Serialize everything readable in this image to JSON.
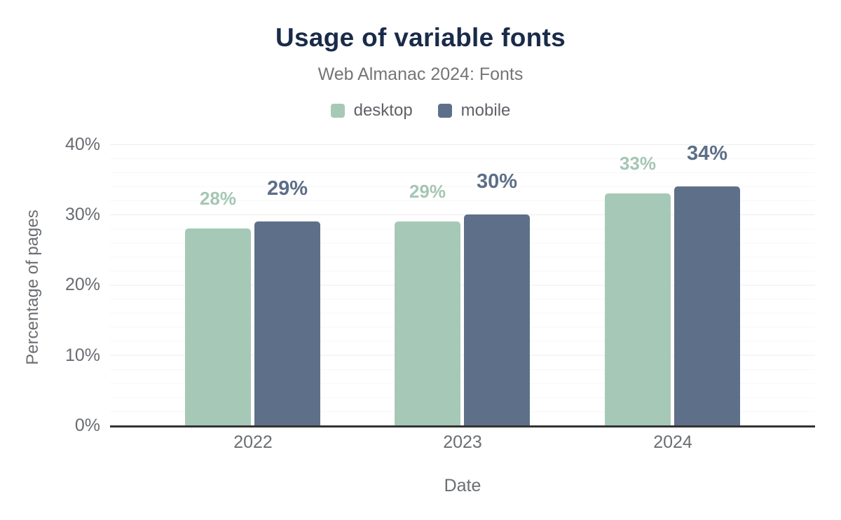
{
  "header": {
    "title": "Usage of variable fonts",
    "subtitle": "Web Almanac 2024: Fonts"
  },
  "legend": [
    {
      "label": "desktop",
      "color": "#a6c9b7"
    },
    {
      "label": "mobile",
      "color": "#5e7089"
    }
  ],
  "chart_data": {
    "type": "bar",
    "title": "Usage of variable fonts",
    "subtitle": "Web Almanac 2024: Fonts",
    "categories": [
      "2022",
      "2023",
      "2024"
    ],
    "series": [
      {
        "name": "desktop",
        "color": "#a6c9b7",
        "label_color": "#a5c6b4",
        "values": [
          28,
          29,
          33
        ],
        "labels": [
          "28%",
          "29%",
          "33%"
        ]
      },
      {
        "name": "mobile",
        "color": "#5e7089",
        "label_color": "#5d6e88",
        "values": [
          29,
          30,
          34
        ],
        "labels": [
          "29%",
          "30%",
          "34%"
        ]
      }
    ],
    "xlabel": "Date",
    "ylabel": "Percentage of pages",
    "ylim": [
      0,
      40
    ],
    "yticks": [
      "0%",
      "10%",
      "20%",
      "30%",
      "40%"
    ],
    "grid": {
      "major_every_pct": 10,
      "minor_every_pct": 2,
      "shown": true
    },
    "legend_position": "top",
    "axis_line_color": "#333333",
    "title_color": "#1a2b49"
  }
}
